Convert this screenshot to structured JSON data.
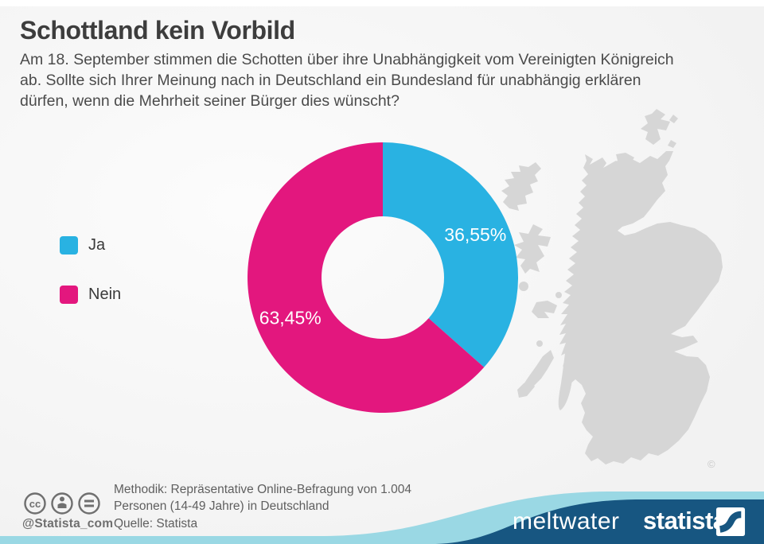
{
  "title": "Schottland kein Vorbild",
  "subtitle_lines": [
    "Am 18. September stimmen die Schotten über ihre Unabhängigkeit vom Vereinigten Königreich",
    "ab. Sollte sich Ihrer Meinung nach in Deutschland ein Bundesland für unabhängig erklären",
    "dürfen, wenn die Mehrheit seiner Bürger dies wünscht?"
  ],
  "chart_data": {
    "type": "pie",
    "subtype": "donut",
    "title": "Schottland kein Vorbild",
    "categories": [
      "Ja",
      "Nein"
    ],
    "values": [
      36.55,
      63.45
    ],
    "value_labels": [
      "36,55%",
      "63,45%"
    ],
    "colors": [
      "#29b2e2",
      "#e3177e"
    ],
    "start_angle_deg": 0,
    "direction": "clockwise",
    "inner_radius_ratio": 0.45,
    "legend_position": "left",
    "background_image": "scotland-map-silhouette"
  },
  "legend": {
    "items": [
      {
        "label": "Ja",
        "color": "#29b2e2"
      },
      {
        "label": "Nein",
        "color": "#e3177e"
      }
    ]
  },
  "map": {
    "name": "scotland-map",
    "copyright_symbol": "©"
  },
  "footer": {
    "methodik_line1": "Methodik: Repräsentative Online-Befragung von 1.004",
    "methodik_line2": "Personen (14-49 Jahre) in Deutschland",
    "quelle": "Quelle: Statista",
    "handle": "@Statista_com",
    "license_icons": [
      "cc-icon",
      "attribution-person-icon",
      "equals-icon"
    ]
  },
  "branding": {
    "meltwater": "meltwater",
    "statista": "statista"
  },
  "colors": {
    "background": "#f2f2f2",
    "background_light": "#fcfcfc",
    "title_text": "#3d3d3d",
    "body_text": "#4b4b4b",
    "footer_text": "#5f5f5f",
    "map_gray": "#d6d6d6",
    "band_dark_blue": "#175681",
    "band_light_blue": "#9ad8e4",
    "slice_ja": "#29b2e2",
    "slice_nein": "#e3177e"
  }
}
